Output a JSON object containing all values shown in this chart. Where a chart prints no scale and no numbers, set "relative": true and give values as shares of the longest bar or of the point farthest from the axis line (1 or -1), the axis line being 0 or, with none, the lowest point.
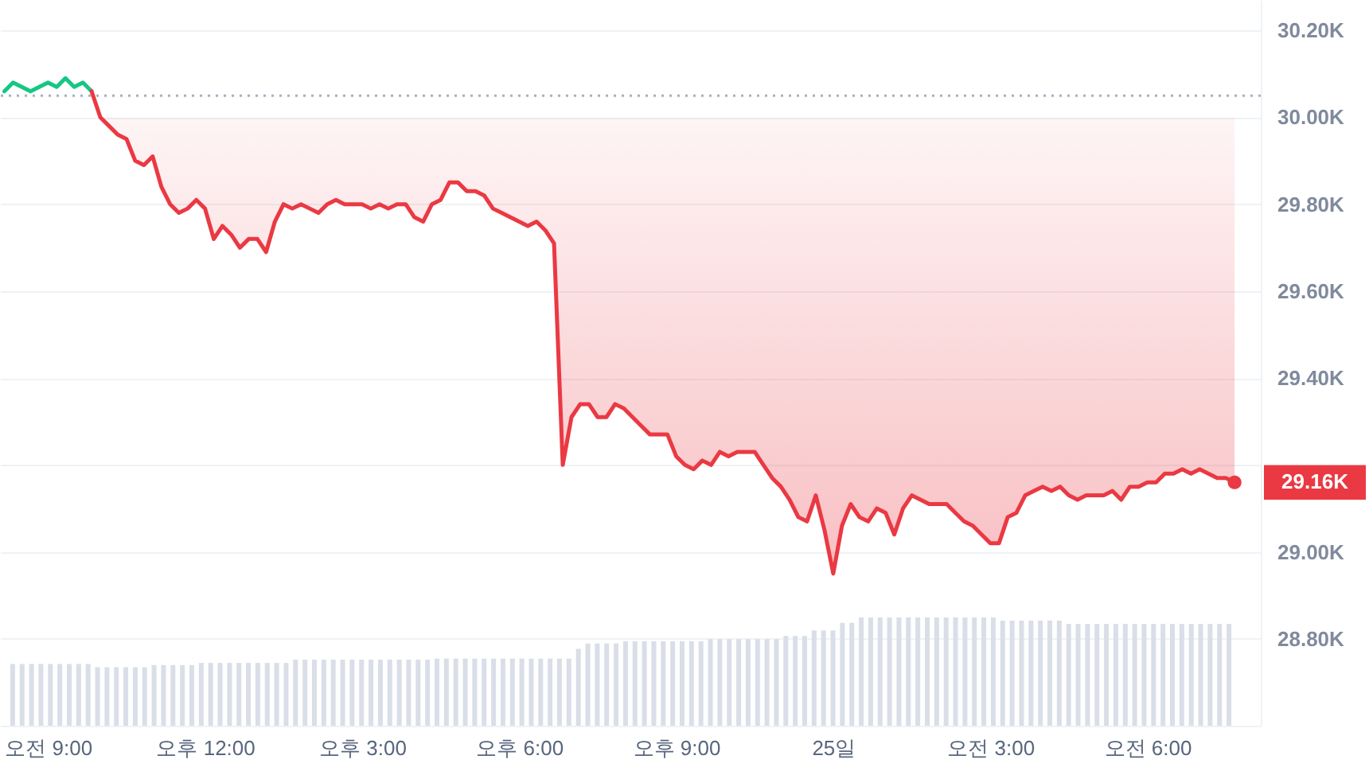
{
  "chart_data": [
    {
      "type": "line",
      "categories": [
        null,
        null,
        null,
        null,
        null,
        "오전 9:00",
        null,
        null,
        null,
        null,
        null,
        null,
        null,
        null,
        null,
        null,
        null,
        null,
        null,
        null,
        null,
        null,
        null,
        "오후 12:00",
        null,
        null,
        null,
        null,
        null,
        null,
        null,
        null,
        null,
        null,
        null,
        null,
        null,
        null,
        null,
        null,
        null,
        "오후 3:00",
        null,
        null,
        null,
        null,
        null,
        null,
        null,
        null,
        null,
        null,
        null,
        null,
        null,
        null,
        null,
        null,
        null,
        "오후 6:00",
        null,
        null,
        null,
        null,
        null,
        null,
        null,
        null,
        null,
        null,
        null,
        null,
        null,
        null,
        null,
        null,
        null,
        "오후 9:00",
        null,
        null,
        null,
        null,
        null,
        null,
        null,
        null,
        null,
        null,
        null,
        null,
        null,
        null,
        null,
        null,
        null,
        "25일",
        null,
        null,
        null,
        null,
        null,
        null,
        null,
        null,
        null,
        null,
        null,
        null,
        null,
        null,
        null,
        null,
        null,
        "오전 3:00",
        null,
        null,
        null,
        null,
        null,
        null,
        null,
        null,
        null,
        null,
        null,
        null,
        null,
        null,
        null,
        null,
        null,
        "오전 6:00",
        null,
        null,
        null,
        null,
        null,
        null,
        null,
        null,
        null,
        null
      ],
      "series": [
        {
          "type": "line",
          "color": "#16c784",
          "values": [
            30.06,
            30.08,
            30.07,
            30.06,
            30.07,
            30.08,
            30.07,
            30.09,
            30.07,
            30.08,
            30.06,
            null,
            null,
            null,
            null,
            null,
            null,
            null,
            null,
            null,
            null,
            null,
            null,
            null,
            null,
            null,
            null,
            null,
            null,
            null,
            null,
            null,
            null,
            null,
            null,
            null,
            null,
            null,
            null,
            null,
            null,
            null,
            null,
            null,
            null,
            null,
            null,
            null,
            null,
            null,
            null,
            null,
            null,
            null,
            null,
            null,
            null,
            null,
            null,
            null,
            null,
            null,
            null,
            null,
            null,
            null,
            null,
            null,
            null,
            null,
            null,
            null,
            null,
            null,
            null,
            null,
            null,
            null,
            null,
            null,
            null,
            null,
            null,
            null,
            null,
            null,
            null,
            null,
            null,
            null,
            null,
            null,
            null,
            null,
            null,
            null,
            null,
            null,
            null,
            null,
            null,
            null,
            null,
            null,
            null,
            null,
            null,
            null,
            null,
            null,
            null,
            null,
            null,
            null,
            null,
            null,
            null,
            null,
            null,
            null,
            null,
            null,
            null,
            null,
            null,
            null,
            null,
            null,
            null,
            null,
            null,
            null,
            null,
            null,
            null,
            null,
            null,
            null,
            null,
            null,
            null,
            null
          ]
        },
        {
          "type": "line",
          "color": "#ea3943",
          "values": [
            null,
            null,
            null,
            null,
            null,
            null,
            null,
            null,
            null,
            null,
            30.06,
            30.0,
            29.98,
            29.96,
            29.95,
            29.9,
            29.89,
            29.91,
            29.84,
            29.8,
            29.78,
            29.79,
            29.81,
            29.79,
            29.72,
            29.75,
            29.73,
            29.7,
            29.72,
            29.72,
            29.69,
            29.76,
            29.8,
            29.79,
            29.8,
            29.79,
            29.78,
            29.8,
            29.81,
            29.8,
            29.8,
            29.8,
            29.79,
            29.8,
            29.79,
            29.8,
            29.8,
            29.77,
            29.76,
            29.8,
            29.81,
            29.85,
            29.85,
            29.83,
            29.83,
            29.82,
            29.79,
            29.78,
            29.77,
            29.76,
            29.75,
            29.76,
            29.74,
            29.71,
            29.2,
            29.31,
            29.34,
            29.34,
            29.31,
            29.31,
            29.34,
            29.33,
            29.31,
            29.29,
            29.27,
            29.27,
            29.27,
            29.22,
            29.2,
            29.19,
            29.21,
            29.2,
            29.23,
            29.22,
            29.23,
            29.23,
            29.23,
            29.2,
            29.17,
            29.15,
            29.12,
            29.08,
            29.07,
            29.13,
            29.05,
            28.95,
            29.06,
            29.11,
            29.08,
            29.07,
            29.1,
            29.09,
            29.04,
            29.1,
            29.13,
            29.12,
            29.11,
            29.11,
            29.11,
            29.09,
            29.07,
            29.06,
            29.04,
            29.02,
            29.02,
            29.08,
            29.09,
            29.13,
            29.14,
            29.15,
            29.14,
            29.15,
            29.13,
            29.12,
            29.13,
            29.13,
            29.13,
            29.14,
            29.12,
            29.15,
            29.15,
            29.16,
            29.16,
            29.18,
            29.18,
            29.19,
            29.18,
            29.19,
            29.18,
            29.17,
            29.17,
            29.16
          ],
          "lower": [
            null,
            null,
            null,
            null,
            null,
            null,
            null,
            null,
            null,
            null,
            null,
            30.0,
            29.98,
            29.96,
            29.95,
            29.9,
            29.89,
            29.91,
            29.84,
            29.8,
            29.78,
            29.79,
            29.81,
            29.79,
            29.72,
            29.75,
            29.73,
            29.7,
            29.72,
            29.72,
            29.69,
            29.76,
            29.8,
            29.79,
            29.8,
            29.79,
            29.78,
            29.8,
            29.81,
            29.8,
            29.8,
            29.8,
            29.79,
            29.8,
            29.79,
            29.8,
            29.8,
            29.77,
            29.76,
            29.8,
            29.81,
            29.85,
            29.85,
            29.83,
            29.83,
            29.82,
            29.79,
            29.78,
            29.77,
            29.76,
            29.75,
            29.76,
            29.74,
            29.71,
            29.2,
            29.31,
            29.34,
            29.34,
            29.31,
            29.31,
            29.34,
            29.33,
            29.31,
            29.29,
            29.27,
            29.27,
            29.27,
            29.22,
            29.2,
            29.19,
            29.21,
            29.2,
            29.23,
            29.22,
            29.23,
            29.23,
            29.23,
            29.2,
            29.17,
            29.15,
            29.12,
            29.08,
            29.07,
            29.13,
            29.05,
            28.95,
            29.06,
            29.11,
            29.08,
            29.07,
            29.1,
            29.09,
            29.04,
            29.1,
            29.13,
            29.12,
            29.11,
            29.11,
            29.11,
            29.09,
            29.07,
            29.06,
            29.04,
            29.02,
            29.02,
            29.08,
            29.09,
            29.13,
            29.14,
            29.15,
            29.14,
            29.15,
            29.13,
            29.12,
            29.13,
            29.13,
            29.13,
            29.14,
            29.12,
            29.15,
            29.15,
            29.16,
            29.16,
            29.18,
            29.18,
            29.19,
            29.18,
            29.19,
            29.18,
            29.17,
            29.17,
            29.16
          ],
          "upper": [
            null,
            null,
            null,
            null,
            null,
            null,
            null,
            null,
            null,
            null,
            null,
            30.0,
            30.0,
            30.0,
            30.0,
            30.0,
            30.0,
            30.0,
            30.0,
            30.0,
            30.0,
            30.0,
            30.0,
            30.0,
            30.0,
            30.0,
            30.0,
            30.0,
            30.0,
            30.0,
            30.0,
            30.0,
            30.0,
            30.0,
            30.0,
            30.0,
            30.0,
            30.0,
            30.0,
            30.0,
            30.0,
            30.0,
            30.0,
            30.0,
            30.0,
            30.0,
            30.0,
            30.0,
            30.0,
            30.0,
            30.0,
            30.0,
            30.0,
            30.0,
            30.0,
            30.0,
            30.0,
            30.0,
            30.0,
            30.0,
            30.0,
            30.0,
            30.0,
            30.0,
            30.0,
            30.0,
            30.0,
            30.0,
            30.0,
            30.0,
            30.0,
            30.0,
            30.0,
            30.0,
            30.0,
            30.0,
            30.0,
            30.0,
            30.0,
            30.0,
            30.0,
            30.0,
            30.0,
            30.0,
            30.0,
            30.0,
            30.0,
            30.0,
            30.0,
            30.0,
            30.0,
            30.0,
            30.0,
            30.0,
            30.0,
            30.0,
            30.0,
            30.0,
            30.0,
            30.0,
            30.0,
            30.0,
            30.0,
            30.0,
            30.0,
            30.0,
            30.0,
            30.0,
            30.0,
            30.0,
            30.0,
            30.0,
            30.0,
            30.0,
            30.0,
            30.0,
            30.0,
            30.0,
            30.0,
            30.0,
            30.0,
            30.0,
            30.0,
            30.0,
            30.0,
            30.0,
            30.0,
            30.0,
            30.0,
            30.0,
            30.0,
            30.0,
            30.0,
            30.0,
            30.0,
            30.0,
            30.0,
            30.0,
            30.0,
            30.0,
            30.0,
            30.0
          ]
        }
      ],
      "ylim": [
        28.6,
        30.27
      ],
      "yticks": [
        {
          "value": 28.8,
          "label": "28.80K"
        },
        {
          "value": 29.0,
          "label": "29.00K"
        },
        {
          "value": 29.2,
          "label": null
        },
        {
          "value": 29.4,
          "label": "29.40K"
        },
        {
          "value": 29.6,
          "label": "29.60K"
        },
        {
          "value": 29.8,
          "label": "29.80K"
        },
        {
          "value": 30.0,
          "label": "30.00K"
        },
        {
          "value": 30.2,
          "label": "30.20K"
        }
      ],
      "grid": "y",
      "ref_lines": [
        {
          "axis": "y",
          "value": 30.05,
          "color": "#a6b0c3",
          "line_style": "dotted"
        }
      ],
      "annotations": [
        "29.16K"
      ]
    },
    {
      "type": "bar",
      "relative": true,
      "color": "#d9dee8",
      "categories": [
        null,
        null,
        null,
        null,
        null,
        null,
        null,
        null,
        null,
        null,
        null,
        null,
        null,
        null,
        null,
        null,
        null,
        null,
        null,
        null,
        null,
        null,
        null,
        null,
        null,
        null,
        null,
        null,
        null,
        null,
        null,
        null,
        null,
        null,
        null,
        null,
        null,
        null,
        null,
        null,
        null,
        null,
        null,
        null,
        null,
        null,
        null,
        null,
        null,
        null,
        null,
        null,
        null,
        null,
        null,
        null,
        null,
        null,
        null,
        null,
        null,
        null,
        null,
        null,
        null,
        null,
        null,
        null,
        null,
        null,
        null,
        null,
        null,
        null,
        null,
        null,
        null,
        null,
        null,
        null,
        null,
        null,
        null,
        null,
        null,
        null,
        null,
        null,
        null,
        null,
        null,
        null,
        null,
        null,
        null,
        null,
        null,
        null,
        null,
        null,
        null,
        null,
        null,
        null,
        null,
        null,
        null,
        null,
        null,
        null,
        null,
        null,
        null,
        null,
        null,
        null,
        null,
        null,
        null,
        null,
        null,
        null,
        null,
        null,
        null,
        null,
        null,
        null,
        null,
        null
      ],
      "values": [
        0.57,
        0.57,
        0.57,
        0.57,
        0.57,
        0.57,
        0.57,
        0.57,
        0.57,
        0.54,
        0.54,
        0.54,
        0.54,
        0.54,
        0.54,
        0.56,
        0.56,
        0.56,
        0.56,
        0.56,
        0.58,
        0.58,
        0.58,
        0.58,
        0.58,
        0.58,
        0.58,
        0.58,
        0.58,
        0.58,
        0.61,
        0.61,
        0.61,
        0.61,
        0.61,
        0.61,
        0.61,
        0.61,
        0.61,
        0.61,
        0.61,
        0.61,
        0.61,
        0.61,
        0.61,
        0.62,
        0.62,
        0.62,
        0.62,
        0.62,
        0.62,
        0.62,
        0.62,
        0.62,
        0.62,
        0.62,
        0.62,
        0.62,
        0.62,
        0.62,
        0.71,
        0.76,
        0.76,
        0.76,
        0.76,
        0.78,
        0.78,
        0.78,
        0.78,
        0.78,
        0.78,
        0.78,
        0.78,
        0.78,
        0.8,
        0.8,
        0.8,
        0.8,
        0.8,
        0.8,
        0.8,
        0.8,
        0.83,
        0.83,
        0.83,
        0.88,
        0.88,
        0.88,
        0.95,
        0.95,
        1,
        1,
        1,
        1,
        1,
        1,
        1,
        1,
        1,
        1,
        1,
        1,
        1,
        1,
        1,
        0.97,
        0.97,
        0.97,
        0.97,
        0.97,
        0.97,
        0.97,
        0.94,
        0.94,
        0.94,
        0.94,
        0.94,
        0.94,
        0.94,
        0.94,
        0.94,
        0.94,
        0.94,
        0.94,
        0.94,
        0.94,
        0.94,
        0.94,
        0.94,
        0.94
      ]
    }
  ]
}
